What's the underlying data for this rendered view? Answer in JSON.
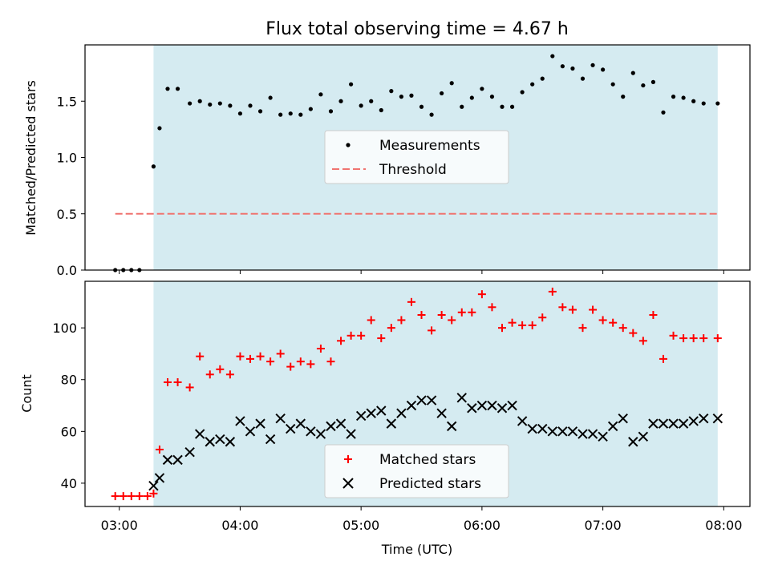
{
  "chart_data": [
    {
      "type": "scatter",
      "title": "Flux total observing time = 4.67 h",
      "xlabel": "",
      "ylabel": "Matched/Predicted stars",
      "xlim": [
        "02:43",
        "08:13"
      ],
      "ylim": [
        0,
        2.0
      ],
      "y_ticks": [
        "0.0",
        "0.5",
        "1.0",
        "1.5"
      ],
      "x_ticks": [
        "03:00",
        "04:00",
        "05:00",
        "06:00",
        "07:00",
        "08:00"
      ],
      "shaded_span": [
        "03:17",
        "07:57"
      ],
      "shade_color": "#d5ebf1",
      "legend_position": "center",
      "grid": false,
      "threshold": {
        "name": "Threshold",
        "value": 0.5,
        "x_range": [
          "02:58",
          "07:57"
        ],
        "color": "#f07470"
      },
      "series": [
        {
          "name": "Measurements",
          "color": "#000000",
          "x": [
            "02:58",
            "03:02",
            "03:06",
            "03:10",
            "03:17",
            "03:20",
            "03:24",
            "03:29",
            "03:35",
            "03:40",
            "03:45",
            "03:50",
            "03:55",
            "04:00",
            "04:05",
            "04:10",
            "04:15",
            "04:20",
            "04:25",
            "04:30",
            "04:35",
            "04:40",
            "04:45",
            "04:50",
            "04:55",
            "05:00",
            "05:05",
            "05:10",
            "05:15",
            "05:20",
            "05:25",
            "05:30",
            "05:35",
            "05:40",
            "05:45",
            "05:50",
            "05:55",
            "06:00",
            "06:05",
            "06:10",
            "06:15",
            "06:20",
            "06:25",
            "06:30",
            "06:35",
            "06:40",
            "06:45",
            "06:50",
            "06:55",
            "07:00",
            "07:05",
            "07:10",
            "07:15",
            "07:20",
            "07:25",
            "07:30",
            "07:35",
            "07:40",
            "07:45",
            "07:50",
            "07:57"
          ],
          "y": [
            0.0,
            0.0,
            0.0,
            0.0,
            0.92,
            1.26,
            1.61,
            1.61,
            1.48,
            1.5,
            1.47,
            1.48,
            1.46,
            1.39,
            1.46,
            1.41,
            1.53,
            1.38,
            1.39,
            1.38,
            1.43,
            1.56,
            1.41,
            1.5,
            1.65,
            1.46,
            1.5,
            1.42,
            1.59,
            1.54,
            1.55,
            1.45,
            1.38,
            1.57,
            1.66,
            1.45,
            1.53,
            1.61,
            1.54,
            1.45,
            1.45,
            1.58,
            1.65,
            1.7,
            1.9,
            1.81,
            1.79,
            1.7,
            1.82,
            1.78,
            1.65,
            1.54,
            1.75,
            1.64,
            1.67,
            1.4,
            1.54,
            1.53,
            1.5,
            1.48,
            1.48
          ]
        }
      ]
    },
    {
      "type": "scatter",
      "title": "",
      "xlabel": "Time (UTC)",
      "ylabel": "Count",
      "xlim": [
        "02:43",
        "08:13"
      ],
      "ylim": [
        31,
        118
      ],
      "y_ticks": [
        "40",
        "60",
        "80",
        "100"
      ],
      "x_ticks": [
        "03:00",
        "04:00",
        "05:00",
        "06:00",
        "07:00",
        "08:00"
      ],
      "shaded_span": [
        "03:17",
        "07:57"
      ],
      "shade_color": "#d5ebf1",
      "legend_position": "lower center",
      "grid": false,
      "series": [
        {
          "name": "Matched stars",
          "marker": "+",
          "color": "#ff0000",
          "x": [
            "02:58",
            "03:02",
            "03:06",
            "03:10",
            "03:14",
            "03:17",
            "03:20",
            "03:24",
            "03:29",
            "03:35",
            "03:40",
            "03:45",
            "03:50",
            "03:55",
            "04:00",
            "04:05",
            "04:10",
            "04:15",
            "04:20",
            "04:25",
            "04:30",
            "04:35",
            "04:40",
            "04:45",
            "04:50",
            "04:55",
            "05:00",
            "05:05",
            "05:10",
            "05:15",
            "05:20",
            "05:25",
            "05:30",
            "05:35",
            "05:40",
            "05:45",
            "05:50",
            "05:55",
            "06:00",
            "06:05",
            "06:10",
            "06:15",
            "06:20",
            "06:25",
            "06:30",
            "06:35",
            "06:40",
            "06:45",
            "06:50",
            "06:55",
            "07:00",
            "07:05",
            "07:10",
            "07:15",
            "07:20",
            "07:25",
            "07:30",
            "07:35",
            "07:40",
            "07:45",
            "07:50",
            "07:57"
          ],
          "y": [
            35,
            35,
            35,
            35,
            35,
            36,
            53,
            79,
            79,
            77,
            89,
            82,
            84,
            82,
            89,
            88,
            89,
            87,
            90,
            85,
            87,
            86,
            92,
            87,
            95,
            97,
            97,
            103,
            96,
            100,
            103,
            110,
            105,
            99,
            105,
            103,
            106,
            106,
            113,
            108,
            100,
            102,
            101,
            101,
            104,
            114,
            108,
            107,
            100,
            107,
            103,
            102,
            100,
            98,
            95,
            105,
            88,
            97,
            96,
            96,
            96,
            96
          ]
        },
        {
          "name": "Predicted stars",
          "marker": "x",
          "color": "#000000",
          "x": [
            "03:17",
            "03:20",
            "03:24",
            "03:29",
            "03:35",
            "03:40",
            "03:45",
            "03:50",
            "03:55",
            "04:00",
            "04:05",
            "04:10",
            "04:15",
            "04:20",
            "04:25",
            "04:30",
            "04:35",
            "04:40",
            "04:45",
            "04:50",
            "04:55",
            "05:00",
            "05:05",
            "05:10",
            "05:15",
            "05:20",
            "05:25",
            "05:30",
            "05:35",
            "05:40",
            "05:45",
            "05:50",
            "05:55",
            "06:00",
            "06:05",
            "06:10",
            "06:15",
            "06:20",
            "06:25",
            "06:30",
            "06:35",
            "06:40",
            "06:45",
            "06:50",
            "06:55",
            "07:00",
            "07:05",
            "07:10",
            "07:15",
            "07:20",
            "07:25",
            "07:30",
            "07:35",
            "07:40",
            "07:45",
            "07:50",
            "07:57"
          ],
          "y": [
            39,
            42,
            49,
            49,
            52,
            59,
            56,
            57,
            56,
            64,
            60,
            63,
            57,
            65,
            61,
            63,
            60,
            59,
            62,
            63,
            59,
            66,
            67,
            68,
            63,
            67,
            70,
            72,
            72,
            67,
            62,
            73,
            69,
            70,
            70,
            69,
            70,
            64,
            61,
            61,
            60,
            60,
            60,
            59,
            59,
            58,
            62,
            65,
            56,
            58,
            63,
            63,
            63,
            63,
            64,
            65,
            65
          ]
        }
      ]
    }
  ]
}
